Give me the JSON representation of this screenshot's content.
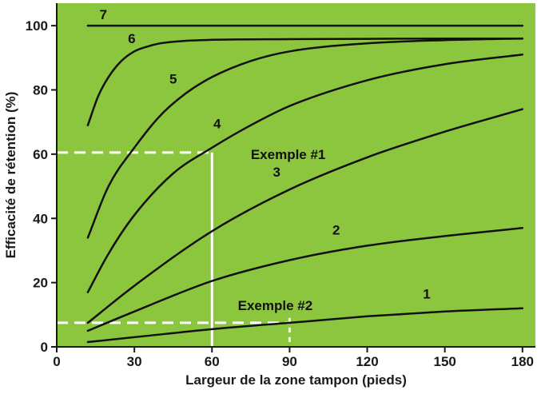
{
  "chart_data": {
    "type": "line",
    "title": "",
    "xlabel": "Largeur de la zone tampon (pieds)",
    "ylabel": "Efficacité de rétention (%)",
    "xlim": [
      0,
      185
    ],
    "ylim": [
      0,
      107
    ],
    "xticks": [
      0,
      30,
      60,
      90,
      120,
      150,
      180
    ],
    "yticks": [
      0,
      20,
      40,
      60,
      80,
      100
    ],
    "grid": false,
    "legend": "none",
    "colors": {
      "background": "#8cc63e",
      "line": "#111111",
      "axis": "#1a1a1a",
      "guide": "#ffffff"
    },
    "series": [
      {
        "label": "1",
        "label_at": [
          143,
          15
        ],
        "x": [
          12,
          30,
          60,
          90,
          120,
          150,
          180
        ],
        "y": [
          1.5,
          3,
          5.5,
          7.5,
          9.5,
          11,
          12
        ]
      },
      {
        "label": "2",
        "label_at": [
          108,
          35
        ],
        "x": [
          12,
          30,
          60,
          90,
          120,
          150,
          180
        ],
        "y": [
          5,
          11,
          20.5,
          27,
          31.5,
          34.5,
          37
        ]
      },
      {
        "label": "3",
        "label_at": [
          85,
          53
        ],
        "x": [
          12,
          30,
          60,
          90,
          120,
          150,
          180
        ],
        "y": [
          7.5,
          19,
          36,
          49,
          59,
          67,
          74
        ]
      },
      {
        "label": "4",
        "label_at": [
          62,
          68
        ],
        "x": [
          12,
          20,
          30,
          45,
          60,
          75,
          90,
          120,
          150,
          180
        ],
        "y": [
          17,
          29,
          41,
          54,
          62,
          69,
          75,
          83,
          88,
          91
        ]
      },
      {
        "label": "5",
        "label_at": [
          45,
          82
        ],
        "x": [
          12,
          20,
          30,
          40,
          50,
          60,
          75,
          90,
          120,
          150,
          180
        ],
        "y": [
          34,
          50,
          62,
          72,
          79,
          84,
          89,
          92,
          94.5,
          95.5,
          96
        ]
      },
      {
        "label": "6",
        "label_at": [
          29,
          94.5
        ],
        "x": [
          12,
          16,
          20,
          25,
          30,
          35,
          40,
          50,
          60,
          90,
          120,
          150,
          180
        ],
        "y": [
          69,
          78,
          84,
          89,
          92,
          93.5,
          94.5,
          95.3,
          95.6,
          95.8,
          95.9,
          96,
          96
        ]
      },
      {
        "label": "7",
        "label_at": [
          18,
          102
        ],
        "x": [
          12,
          180
        ],
        "y": [
          100,
          100
        ]
      }
    ],
    "annotations": [
      {
        "text": "Exemple #1",
        "label_at": [
          75,
          58.5
        ],
        "x": 60,
        "y": 60.5
      },
      {
        "text": "Exemple #2",
        "label_at": [
          70,
          11.5
        ],
        "x": 90,
        "y": 7.5
      }
    ]
  }
}
